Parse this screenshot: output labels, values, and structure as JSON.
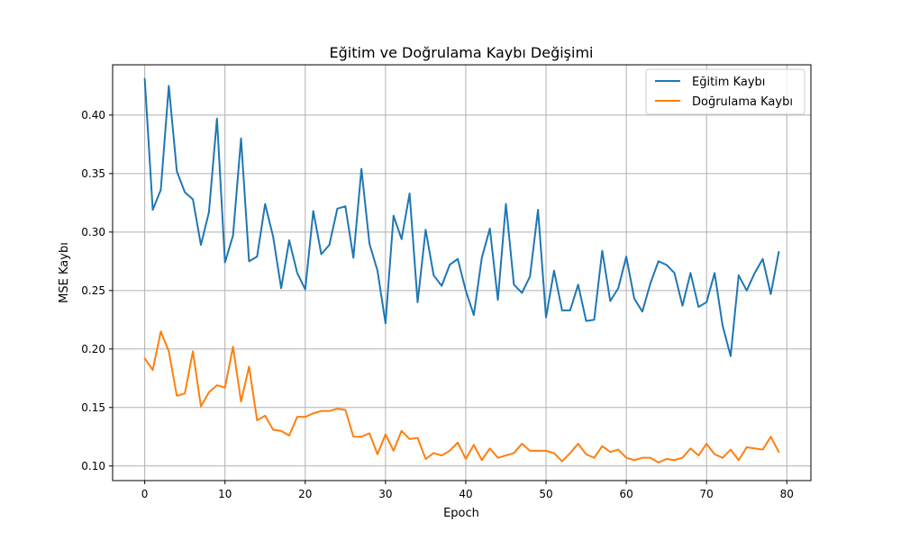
{
  "chart_data": {
    "type": "line",
    "title": "Eğitim ve Doğrulama Kaybı Değişimi",
    "xlabel": "Epoch",
    "ylabel": "MSE Kaybı",
    "xlim": [
      -4,
      83
    ],
    "ylim": [
      0.0875,
      0.443
    ],
    "xticks": [
      0,
      10,
      20,
      30,
      40,
      50,
      60,
      70,
      80
    ],
    "xtick_labels": [
      "0",
      "10",
      "20",
      "30",
      "40",
      "50",
      "60",
      "70",
      "80"
    ],
    "yticks": [
      0.1,
      0.15,
      0.2,
      0.25,
      0.3,
      0.35,
      0.4
    ],
    "ytick_labels": [
      "0.10",
      "0.15",
      "0.20",
      "0.25",
      "0.30",
      "0.35",
      "0.40"
    ],
    "grid": true,
    "legend_position": "top-right",
    "x": [
      0,
      1,
      2,
      3,
      4,
      5,
      6,
      7,
      8,
      9,
      10,
      11,
      12,
      13,
      14,
      15,
      16,
      17,
      18,
      19,
      20,
      21,
      22,
      23,
      24,
      25,
      26,
      27,
      28,
      29,
      30,
      31,
      32,
      33,
      34,
      35,
      36,
      37,
      38,
      39,
      40,
      41,
      42,
      43,
      44,
      45,
      46,
      47,
      48,
      49,
      50,
      51,
      52,
      53,
      54,
      55,
      56,
      57,
      58,
      59,
      60,
      61,
      62,
      63,
      64,
      65,
      66,
      67,
      68,
      69,
      70,
      71,
      72,
      73,
      74,
      75,
      76,
      77,
      78,
      79
    ],
    "series": [
      {
        "name": "Eğitim Kaybı",
        "color": "#1f77b4",
        "values": [
          0.431,
          0.319,
          0.336,
          0.425,
          0.352,
          0.334,
          0.328,
          0.289,
          0.317,
          0.397,
          0.274,
          0.297,
          0.38,
          0.275,
          0.279,
          0.324,
          0.296,
          0.252,
          0.293,
          0.265,
          0.251,
          0.318,
          0.281,
          0.289,
          0.32,
          0.322,
          0.278,
          0.354,
          0.29,
          0.267,
          0.222,
          0.314,
          0.294,
          0.333,
          0.24,
          0.302,
          0.263,
          0.254,
          0.272,
          0.277,
          0.25,
          0.229,
          0.278,
          0.303,
          0.242,
          0.324,
          0.255,
          0.248,
          0.262,
          0.319,
          0.227,
          0.267,
          0.233,
          0.233,
          0.255,
          0.224,
          0.225,
          0.284,
          0.241,
          0.252,
          0.279,
          0.243,
          0.232,
          0.256,
          0.275,
          0.272,
          0.265,
          0.237,
          0.265,
          0.236,
          0.24,
          0.265,
          0.22,
          0.194,
          0.263,
          0.25,
          0.265,
          0.277,
          0.247,
          0.283
        ]
      },
      {
        "name": "Doğrulama Kaybı",
        "color": "#ff7f0e",
        "values": [
          0.192,
          0.182,
          0.215,
          0.198,
          0.16,
          0.162,
          0.198,
          0.151,
          0.163,
          0.169,
          0.167,
          0.202,
          0.155,
          0.185,
          0.139,
          0.143,
          0.131,
          0.13,
          0.126,
          0.142,
          0.142,
          0.145,
          0.147,
          0.147,
          0.149,
          0.148,
          0.125,
          0.125,
          0.128,
          0.11,
          0.127,
          0.113,
          0.13,
          0.123,
          0.124,
          0.106,
          0.111,
          0.109,
          0.113,
          0.12,
          0.106,
          0.118,
          0.105,
          0.115,
          0.107,
          0.109,
          0.111,
          0.119,
          0.113,
          0.113,
          0.113,
          0.111,
          0.104,
          0.111,
          0.119,
          0.11,
          0.107,
          0.117,
          0.112,
          0.114,
          0.107,
          0.105,
          0.107,
          0.107,
          0.103,
          0.106,
          0.105,
          0.107,
          0.115,
          0.109,
          0.119,
          0.11,
          0.107,
          0.114,
          0.105,
          0.116,
          0.115,
          0.114,
          0.125,
          0.112
        ]
      }
    ]
  }
}
